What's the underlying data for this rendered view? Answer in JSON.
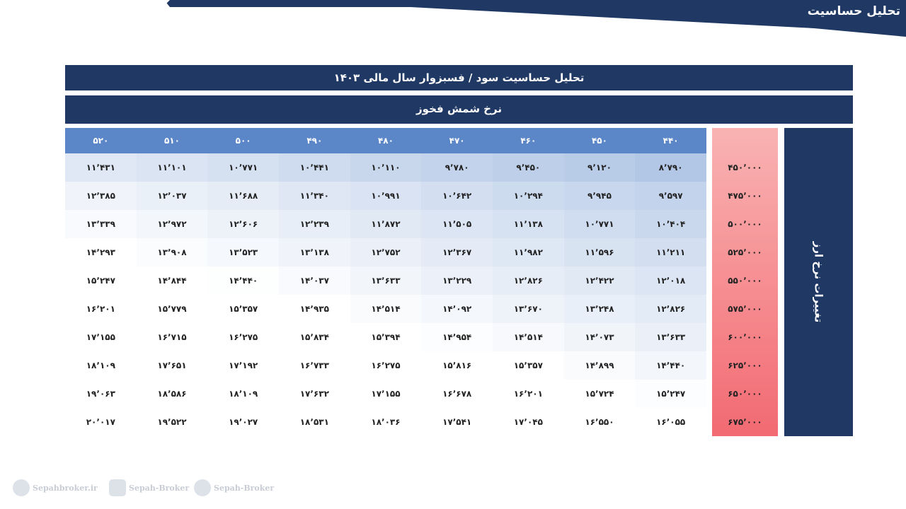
{
  "header": {
    "title": "تحلیل حساسیت"
  },
  "table": {
    "title": "تحلیل حساسیت سود / فسبزوار سال مالی ۱۴۰۳",
    "subtitle": "نرخ شمش فخوز",
    "side_label": "تغییرات نرخ ارز",
    "columns": [
      "۴۴۰",
      "۴۵۰",
      "۴۶۰",
      "۴۷۰",
      "۴۸۰",
      "۴۹۰",
      "۵۰۰",
      "۵۱۰",
      "۵۲۰"
    ],
    "rows": [
      {
        "label": "۴۵۰٬۰۰۰",
        "cells": [
          "۸٬۷۹۰",
          "۹٬۱۲۰",
          "۹٬۴۵۰",
          "۹٬۷۸۰",
          "۱۰٬۱۱۰",
          "۱۰٬۴۴۱",
          "۱۰٬۷۷۱",
          "۱۱٬۱۰۱",
          "۱۱٬۴۳۱"
        ]
      },
      {
        "label": "۴۷۵٬۰۰۰",
        "cells": [
          "۹٬۵۹۷",
          "۹٬۹۴۵",
          "۱۰٬۲۹۴",
          "۱۰٬۶۴۲",
          "۱۰٬۹۹۱",
          "۱۱٬۳۴۰",
          "۱۱٬۶۸۸",
          "۱۲٬۰۳۷",
          "۱۲٬۳۸۵"
        ]
      },
      {
        "label": "۵۰۰٬۰۰۰",
        "cells": [
          "۱۰٬۴۰۴",
          "۱۰٬۷۷۱",
          "۱۱٬۱۳۸",
          "۱۱٬۵۰۵",
          "۱۱٬۸۷۲",
          "۱۲٬۲۳۹",
          "۱۲٬۶۰۶",
          "۱۲٬۹۷۲",
          "۱۳٬۳۳۹"
        ]
      },
      {
        "label": "۵۲۵٬۰۰۰",
        "cells": [
          "۱۱٬۲۱۱",
          "۱۱٬۵۹۶",
          "۱۱٬۹۸۲",
          "۱۲٬۳۶۷",
          "۱۲٬۷۵۲",
          "۱۳٬۱۳۸",
          "۱۳٬۵۲۳",
          "۱۳٬۹۰۸",
          "۱۴٬۲۹۳"
        ]
      },
      {
        "label": "۵۵۰٬۰۰۰",
        "cells": [
          "۱۲٬۰۱۸",
          "۱۲٬۴۲۲",
          "۱۲٬۸۲۶",
          "۱۳٬۲۲۹",
          "۱۳٬۶۳۳",
          "۱۴٬۰۳۷",
          "۱۴٬۴۴۰",
          "۱۴٬۸۴۴",
          "۱۵٬۲۴۷"
        ]
      },
      {
        "label": "۵۷۵٬۰۰۰",
        "cells": [
          "۱۲٬۸۲۶",
          "۱۳٬۲۴۸",
          "۱۳٬۶۷۰",
          "۱۴٬۰۹۲",
          "۱۴٬۵۱۴",
          "۱۴٬۹۳۵",
          "۱۵٬۳۵۷",
          "۱۵٬۷۷۹",
          "۱۶٬۲۰۱"
        ]
      },
      {
        "label": "۶۰۰٬۰۰۰",
        "cells": [
          "۱۳٬۶۳۳",
          "۱۴٬۰۷۳",
          "۱۴٬۵۱۴",
          "۱۴٬۹۵۴",
          "۱۵٬۳۹۴",
          "۱۵٬۸۳۴",
          "۱۶٬۲۷۵",
          "۱۶٬۷۱۵",
          "۱۷٬۱۵۵"
        ]
      },
      {
        "label": "۶۲۵٬۰۰۰",
        "cells": [
          "۱۴٬۴۴۰",
          "۱۴٬۸۹۹",
          "۱۵٬۳۵۷",
          "۱۵٬۸۱۶",
          "۱۶٬۲۷۵",
          "۱۶٬۷۳۳",
          "۱۷٬۱۹۲",
          "۱۷٬۶۵۱",
          "۱۸٬۱۰۹"
        ]
      },
      {
        "label": "۶۵۰٬۰۰۰",
        "cells": [
          "۱۵٬۲۴۷",
          "۱۵٬۷۲۴",
          "۱۶٬۲۰۱",
          "۱۶٬۶۷۸",
          "۱۷٬۱۵۵",
          "۱۷٬۶۳۲",
          "۱۸٬۱۰۹",
          "۱۸٬۵۸۶",
          "۱۹٬۰۶۳"
        ]
      },
      {
        "label": "۶۷۵٬۰۰۰",
        "cells": [
          "۱۶٬۰۵۵",
          "۱۶٬۵۵۰",
          "۱۷٬۰۴۵",
          "۱۷٬۵۴۱",
          "۱۸٬۰۳۶",
          "۱۸٬۵۳۱",
          "۱۹٬۰۲۷",
          "۱۹٬۵۲۲",
          "۲۰٬۰۱۷"
        ]
      }
    ]
  },
  "footer": {
    "items": [
      "Sepahbroker.ir",
      "Sepah-Broker",
      "Sepah-Broker"
    ]
  }
}
